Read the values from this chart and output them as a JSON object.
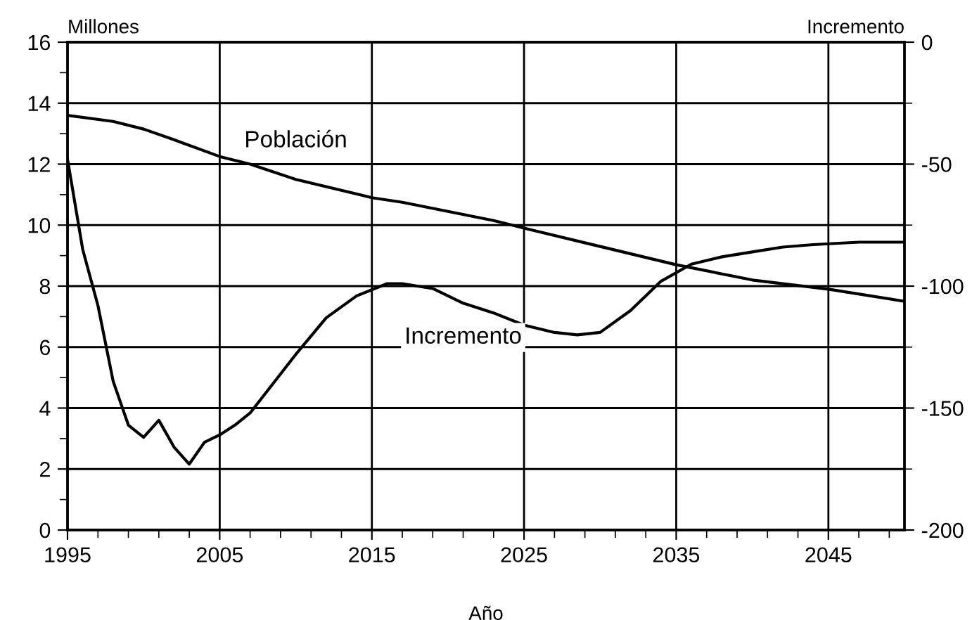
{
  "chart_data": {
    "type": "line",
    "xlabel": "Año",
    "ylabel": "Millones",
    "y2label": "Incremento",
    "series": [
      {
        "name": "Población",
        "color": "#000000",
        "x": [
          1995,
          1998,
          2000,
          2002,
          2005,
          2007,
          2010,
          2015,
          2017,
          2020,
          2023,
          2025,
          2030,
          2035,
          2040,
          2045,
          2050
        ],
        "values": [
          13.6,
          13.4,
          13.15,
          12.8,
          12.25,
          12.0,
          11.5,
          10.9,
          10.75,
          10.45,
          10.15,
          9.9,
          9.3,
          8.7,
          8.2,
          7.9,
          7.5
        ]
      },
      {
        "name": "Incremento",
        "color": "#000000",
        "axis": "y2",
        "x": [
          1995,
          1996,
          1997,
          1998,
          1999,
          2000,
          2001,
          2002,
          2003,
          2004,
          2005,
          2006,
          2007,
          2008,
          2009,
          2010,
          2012,
          2014,
          2016,
          2017,
          2019,
          2021,
          2023,
          2025,
          2027,
          2028.5,
          2030,
          2032,
          2034,
          2036,
          2038,
          2040,
          2042,
          2044,
          2047,
          2050
        ],
        "values": [
          -48,
          -85,
          -108,
          -139,
          -157,
          -162,
          -155,
          -166,
          -173,
          -164,
          -161,
          -157,
          -152,
          -144,
          -136,
          -128,
          -113,
          -104,
          -99,
          -99,
          -101,
          -107,
          -111,
          -116,
          -119,
          -120,
          -119,
          -110,
          -98,
          -91,
          -88,
          -86,
          -84,
          -83,
          -82,
          -82
        ]
      }
    ],
    "xlim": [
      1995,
      2050
    ],
    "xticks": [
      1995,
      {
        "value": 1997,
        "label": null
      },
      {
        "value": 1999,
        "label": null
      },
      {
        "value": 2001,
        "label": null
      },
      {
        "value": 2003,
        "label": null
      },
      2005,
      {
        "value": 2007,
        "label": null
      },
      {
        "value": 2009,
        "label": null
      },
      {
        "value": 2011,
        "label": null
      },
      {
        "value": 2013,
        "label": null
      },
      2015,
      {
        "value": 2017,
        "label": null
      },
      {
        "value": 2019,
        "label": null
      },
      {
        "value": 2021,
        "label": null
      },
      {
        "value": 2023,
        "label": null
      },
      2025,
      {
        "value": 2027,
        "label": null
      },
      {
        "value": 2029,
        "label": null
      },
      {
        "value": 2031,
        "label": null
      },
      {
        "value": 2033,
        "label": null
      },
      2035,
      {
        "value": 2037,
        "label": null
      },
      {
        "value": 2039,
        "label": null
      },
      {
        "value": 2041,
        "label": null
      },
      {
        "value": 2043,
        "label": null
      },
      2045,
      {
        "value": 2047,
        "label": null
      },
      {
        "value": 2049,
        "label": null
      }
    ],
    "ylim": [
      0,
      16
    ],
    "yticks": [
      0,
      {
        "value": 1,
        "label": null
      },
      2,
      {
        "value": 3,
        "label": null
      },
      4,
      {
        "value": 5,
        "label": null
      },
      6,
      {
        "value": 7,
        "label": null
      },
      8,
      {
        "value": 9,
        "label": null
      },
      10,
      {
        "value": 11,
        "label": null
      },
      12,
      {
        "value": 13,
        "label": null
      },
      14,
      {
        "value": 15,
        "label": null
      },
      16
    ],
    "y2lim": [
      -200,
      0
    ],
    "y2ticks": [
      -200,
      {
        "value": -175,
        "label": null
      },
      -150,
      {
        "value": -125,
        "label": null
      },
      -100,
      {
        "value": -75,
        "label": null
      },
      -50,
      {
        "value": -25,
        "label": null
      },
      0
    ],
    "grid": true,
    "legend": false,
    "marker": "none",
    "line_style": "solid"
  }
}
